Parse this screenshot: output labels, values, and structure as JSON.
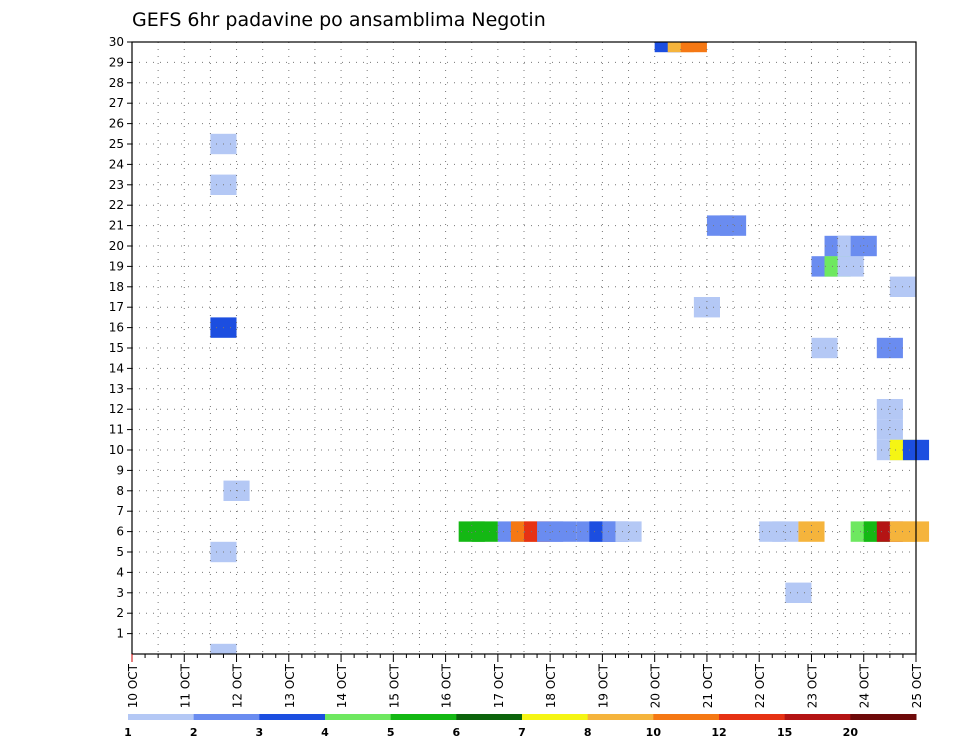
{
  "chart_data": {
    "type": "heatmap",
    "title": "GEFS 6hr padavine po ansamblima Negotin",
    "xlabel": "",
    "ylabel": "",
    "x_range": [
      "10 OCT",
      "25 OCT"
    ],
    "ylim": [
      0,
      30
    ],
    "y_ticks": [
      1,
      2,
      3,
      4,
      5,
      6,
      7,
      8,
      9,
      10,
      11,
      12,
      13,
      14,
      15,
      16,
      17,
      18,
      19,
      20,
      21,
      22,
      23,
      24,
      25,
      26,
      27,
      28,
      29,
      30
    ],
    "x_ticks": [
      "10 OCT",
      "11 OCT",
      "12 OCT",
      "13 OCT",
      "14 OCT",
      "15 OCT",
      "16 OCT",
      "17 OCT",
      "18 OCT",
      "19 OCT",
      "20 OCT",
      "21 OCT",
      "22 OCT",
      "23 OCT",
      "24 OCT",
      "25 OCT"
    ],
    "grid": true,
    "legend": {
      "placement": "bottom",
      "labels": [
        "1",
        "2",
        "3",
        "4",
        "5",
        "6",
        "7",
        "8",
        "10",
        "12",
        "15",
        "20"
      ],
      "colors": [
        "#b4c8f5",
        "#6a8cf0",
        "#1c4ee0",
        "#6ee860",
        "#14b814",
        "#0c640c",
        "#f5f514",
        "#f5b43c",
        "#f57814",
        "#e63214",
        "#b41414",
        "#6e0a0a"
      ]
    },
    "cells": [
      {
        "day": 11.5,
        "member": 25,
        "color": "#b4c8f5"
      },
      {
        "day": 11.5,
        "member": 23,
        "color": "#b4c8f5"
      },
      {
        "day": 11.5,
        "member": 16,
        "color": "#1c4ee0"
      },
      {
        "day": 11.75,
        "member": 8,
        "color": "#b4c8f5"
      },
      {
        "day": 11.5,
        "member": 5,
        "color": "#b4c8f5"
      },
      {
        "day": 11.5,
        "member": 0,
        "color": "#b4c8f5"
      },
      {
        "day": 16.25,
        "member": 6,
        "color": "#14b814"
      },
      {
        "day": 16.5,
        "member": 6,
        "color": "#14b814"
      },
      {
        "day": 17.0,
        "member": 6,
        "color": "#6a8cf0"
      },
      {
        "day": 17.25,
        "member": 6,
        "color": "#f57814"
      },
      {
        "day": 17.5,
        "member": 6,
        "color": "#e63214"
      },
      {
        "day": 17.75,
        "member": 6,
        "color": "#6a8cf0"
      },
      {
        "day": 18.0,
        "member": 6,
        "color": "#6a8cf0"
      },
      {
        "day": 18.5,
        "member": 6,
        "color": "#6a8cf0"
      },
      {
        "day": 18.75,
        "member": 6,
        "color": "#1c4ee0"
      },
      {
        "day": 19.0,
        "member": 6,
        "color": "#6a8cf0"
      },
      {
        "day": 19.25,
        "member": 6,
        "color": "#b4c8f5"
      },
      {
        "day": 20.0,
        "member": 30,
        "color": "#1c4ee0"
      },
      {
        "day": 20.25,
        "member": 30,
        "color": "#f5b43c"
      },
      {
        "day": 20.5,
        "member": 30,
        "color": "#f57814"
      },
      {
        "day": 20.75,
        "member": 17,
        "color": "#b4c8f5"
      },
      {
        "day": 21.0,
        "member": 21,
        "color": "#6a8cf0"
      },
      {
        "day": 21.25,
        "member": 21,
        "color": "#6a8cf0"
      },
      {
        "day": 22.0,
        "member": 6,
        "color": "#b4c8f5"
      },
      {
        "day": 22.25,
        "member": 6,
        "color": "#b4c8f5"
      },
      {
        "day": 22.5,
        "member": 3,
        "color": "#b4c8f5"
      },
      {
        "day": 22.75,
        "member": 6,
        "color": "#f5b43c"
      },
      {
        "day": 23.0,
        "member": 19,
        "color": "#6a8cf0"
      },
      {
        "day": 23.0,
        "member": 15,
        "color": "#b4c8f5"
      },
      {
        "day": 23.25,
        "member": 20,
        "color": "#6a8cf0"
      },
      {
        "day": 23.25,
        "member": 19,
        "color": "#6ee860"
      },
      {
        "day": 23.5,
        "member": 20,
        "color": "#b4c8f5"
      },
      {
        "day": 23.5,
        "member": 19,
        "color": "#b4c8f5"
      },
      {
        "day": 23.75,
        "member": 20,
        "color": "#6a8cf0"
      },
      {
        "day": 23.75,
        "member": 6,
        "color": "#6ee860"
      },
      {
        "day": 24.0,
        "member": 6,
        "color": "#14b814"
      },
      {
        "day": 24.25,
        "member": 15,
        "color": "#6a8cf0"
      },
      {
        "day": 24.25,
        "member": 12,
        "color": "#b4c8f5"
      },
      {
        "day": 24.25,
        "member": 11,
        "color": "#b4c8f5"
      },
      {
        "day": 24.25,
        "member": 10,
        "color": "#b4c8f5"
      },
      {
        "day": 24.25,
        "member": 6,
        "color": "#b41414"
      },
      {
        "day": 24.5,
        "member": 18,
        "color": "#b4c8f5"
      },
      {
        "day": 24.5,
        "member": 10,
        "color": "#f5f514"
      },
      {
        "day": 24.5,
        "member": 6,
        "color": "#f5b43c"
      },
      {
        "day": 24.75,
        "member": 10,
        "color": "#1c4ee0"
      },
      {
        "day": 24.75,
        "member": 6,
        "color": "#f5b43c"
      }
    ]
  }
}
